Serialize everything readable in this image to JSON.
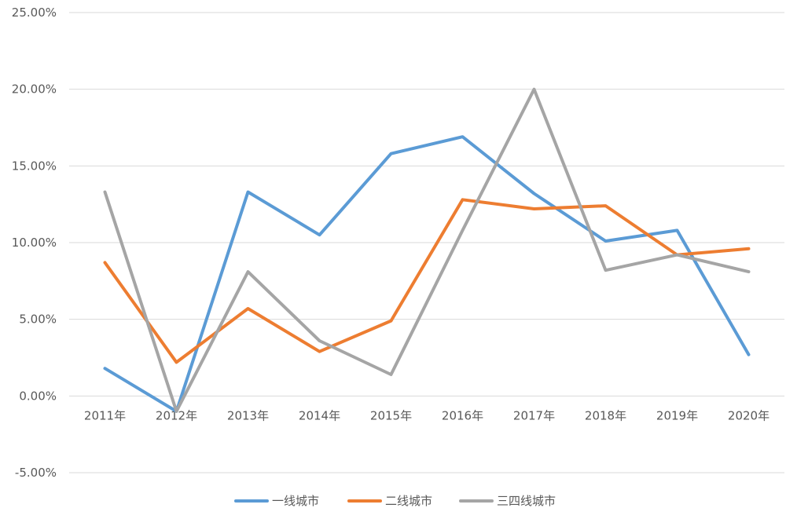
{
  "chart_data": {
    "type": "line",
    "categories": [
      "2011年",
      "2012年",
      "2013年",
      "2014年",
      "2015年",
      "2016年",
      "2017年",
      "2018年",
      "2019年",
      "2020年"
    ],
    "ylim": [
      -5,
      25
    ],
    "yticks": [
      -5,
      0,
      5,
      10,
      15,
      20,
      25
    ],
    "ytick_labels": [
      "-5.00%",
      "0.00%",
      "5.00%",
      "10.00%",
      "15.00%",
      "20.00%",
      "25.00%"
    ],
    "grid": true,
    "legend_position": "bottom",
    "series": [
      {
        "name": "一线城市",
        "color": "#5b9bd5",
        "values": [
          1.8,
          -1.0,
          13.3,
          10.5,
          15.8,
          16.9,
          13.2,
          10.1,
          10.8,
          2.7
        ]
      },
      {
        "name": "二线城市",
        "color": "#ed7d31",
        "values": [
          8.7,
          2.2,
          5.7,
          2.9,
          4.9,
          12.8,
          12.2,
          12.4,
          9.2,
          9.6
        ]
      },
      {
        "name": "三四线城市",
        "color": "#a5a5a5",
        "values": [
          13.3,
          -1.0,
          8.1,
          3.6,
          1.4,
          10.8,
          20.0,
          8.2,
          9.2,
          8.1
        ]
      }
    ]
  }
}
